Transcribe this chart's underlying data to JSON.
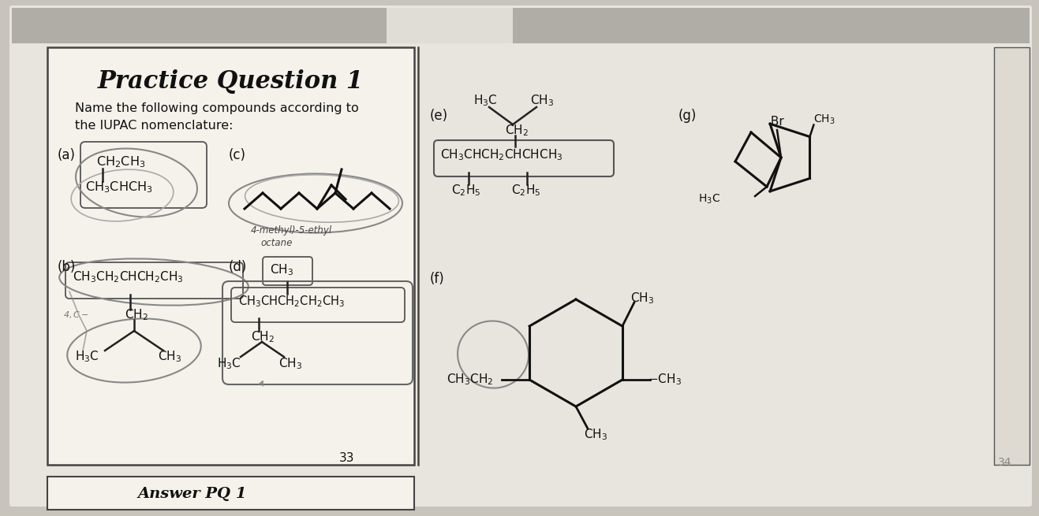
{
  "bg_color": "#c8c4bc",
  "page_color": "#e8e5de",
  "left_box_color": "#f2efe8",
  "title": "Practice Question 1",
  "subtitle1": "Name the following compounds according to",
  "subtitle2": "the IUPAC nomenclature:",
  "label_a": "(a)",
  "label_b": "(b)",
  "label_c": "(c)",
  "label_d": "(d)",
  "label_e": "(e)",
  "label_f": "(f)",
  "label_g": "(g)",
  "page_num_left": "33",
  "page_num_right": "34",
  "text_color": "#111111",
  "line_color": "#222222",
  "scribble_color": "#888888",
  "annotation_c": "4-methyl)-5-ethyl\noctane"
}
